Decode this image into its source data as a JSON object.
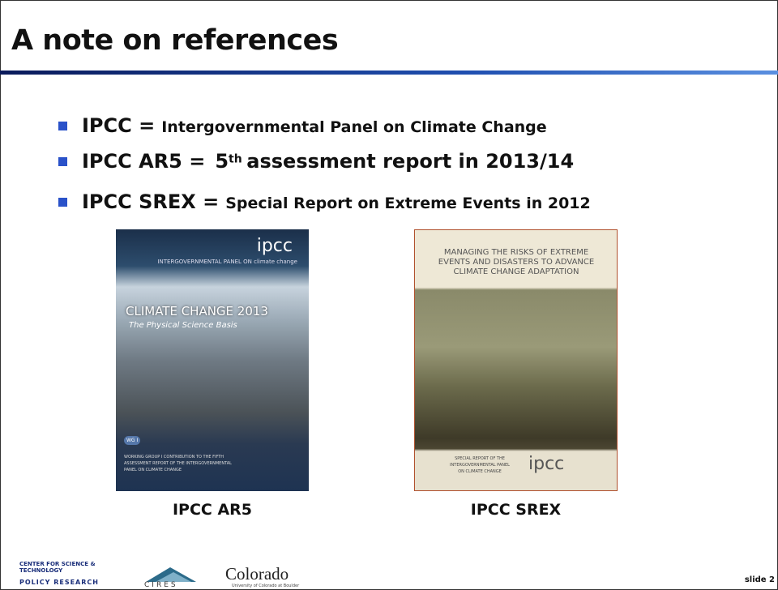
{
  "slide": {
    "title": "A note on references",
    "bullets": [
      {
        "term": "IPCC =",
        "desc": "Intergovernmental Panel on Climate Change"
      },
      {
        "term": "IPCC AR5 =",
        "lead": "5",
        "sup": "th",
        "rest": "assessment report in 2013/14"
      },
      {
        "term": "IPCC SREX =",
        "desc": "Special Report on Extreme Events in 2012"
      }
    ],
    "covers": [
      {
        "logo": "ipcc",
        "panel": "INTERGOVERNMENTAL PANEL ON climate change",
        "heading": "CLIMATE CHANGE 2013",
        "subheading": "The Physical Science Basis",
        "badge": "WG I",
        "footer": "WORKING GROUP I CONTRIBUTION TO THE FIFTH ASSESSMENT REPORT OF THE INTERGOVERNMENTAL PANEL ON CLIMATE CHANGE",
        "caption": "IPCC AR5"
      },
      {
        "heading": "MANAGING THE RISKS OF EXTREME EVENTS AND DISASTERS TO ADVANCE CLIMATE CHANGE ADAPTATION",
        "footer": "SPECIAL REPORT OF THE INTERGOVERNMENTAL PANEL ON CLIMATE CHANGE",
        "logo": "ipcc",
        "caption": "IPCC SREX"
      }
    ],
    "logos": {
      "cstpr_top": "CENTER FOR SCIENCE & TECHNOLOGY",
      "cstpr_bottom": "POLICY RESEARCH",
      "cires": "CIRES",
      "colorado": "Colorado",
      "colorado_sub": "University of Colorado at Boulder"
    },
    "slide_number": "slide 2"
  }
}
